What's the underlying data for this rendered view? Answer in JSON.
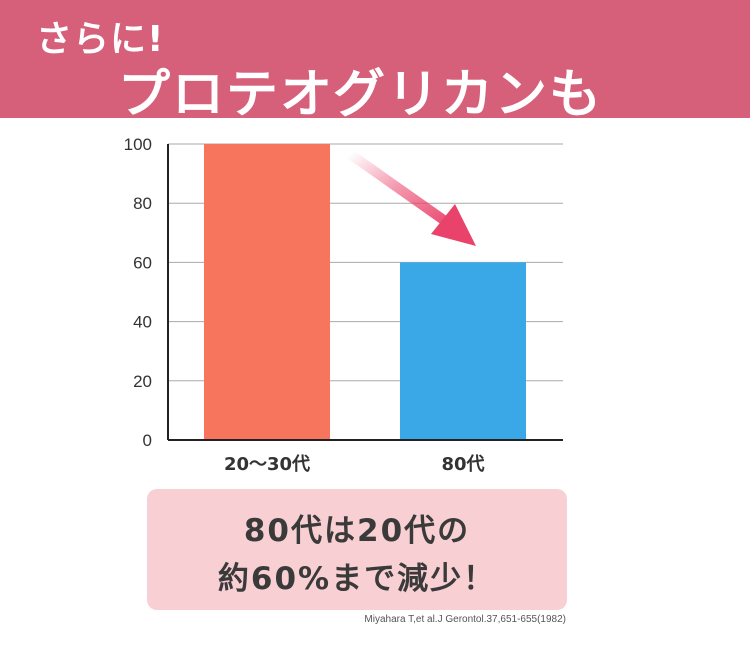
{
  "header": {
    "line1": "さらに!",
    "line2": "プロテオグリカンも"
  },
  "chart_data": {
    "type": "bar",
    "categories": [
      "20〜30代",
      "80代"
    ],
    "values": [
      100,
      60
    ],
    "ylim": [
      0,
      100
    ],
    "yticks": [
      0,
      20,
      40,
      60,
      80,
      100
    ],
    "grid": true,
    "colors": [
      "#f7745d",
      "#3aa8e6"
    ],
    "annotation": "downward arrow from the 20〜30代 bar to the 80代 bar"
  },
  "callout": {
    "line1": "80代は20代の",
    "line2": "約60%まで減少！"
  },
  "citation": "Miyahara T,et al.J Gerontol.37,651-655(1982)"
}
